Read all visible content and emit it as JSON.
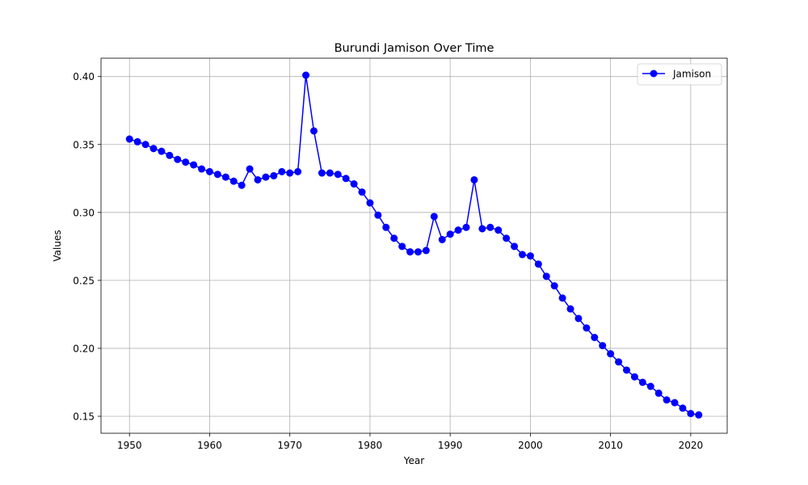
{
  "chart_data": {
    "type": "line",
    "title": "Burundi Jamison Over Time",
    "xlabel": "Year",
    "ylabel": "Values",
    "xlim": [
      1946.45,
      2024.55
    ],
    "ylim": [
      0.1375,
      0.4135
    ],
    "x_ticks": [
      1950,
      1960,
      1970,
      1980,
      1990,
      2000,
      2010,
      2020
    ],
    "y_ticks": [
      0.15,
      0.2,
      0.25,
      0.3,
      0.35,
      0.4
    ],
    "y_tick_labels": [
      "0.15",
      "0.20",
      "0.25",
      "0.30",
      "0.35",
      "0.40"
    ],
    "grid": true,
    "legend_position": "top-right",
    "series": [
      {
        "name": "Jamison",
        "color": "#0000ff",
        "marker": "circle",
        "x": [
          1950,
          1951,
          1952,
          1953,
          1954,
          1955,
          1956,
          1957,
          1958,
          1959,
          1960,
          1961,
          1962,
          1963,
          1964,
          1965,
          1966,
          1967,
          1968,
          1969,
          1970,
          1971,
          1972,
          1973,
          1974,
          1975,
          1976,
          1977,
          1978,
          1979,
          1980,
          1981,
          1982,
          1983,
          1984,
          1985,
          1986,
          1987,
          1988,
          1989,
          1990,
          1991,
          1992,
          1993,
          1994,
          1995,
          1996,
          1997,
          1998,
          1999,
          2000,
          2001,
          2002,
          2003,
          2004,
          2005,
          2006,
          2007,
          2008,
          2009,
          2010,
          2011,
          2012,
          2013,
          2014,
          2015,
          2016,
          2017,
          2018,
          2019,
          2020,
          2021
        ],
        "values": [
          0.354,
          0.352,
          0.35,
          0.347,
          0.345,
          0.342,
          0.339,
          0.337,
          0.335,
          0.332,
          0.33,
          0.328,
          0.326,
          0.323,
          0.32,
          0.332,
          0.324,
          0.326,
          0.327,
          0.33,
          0.329,
          0.33,
          0.401,
          0.36,
          0.329,
          0.329,
          0.328,
          0.325,
          0.321,
          0.315,
          0.307,
          0.298,
          0.289,
          0.281,
          0.275,
          0.271,
          0.271,
          0.272,
          0.297,
          0.28,
          0.284,
          0.287,
          0.289,
          0.324,
          0.288,
          0.289,
          0.287,
          0.281,
          0.275,
          0.269,
          0.268,
          0.262,
          0.253,
          0.246,
          0.237,
          0.229,
          0.222,
          0.215,
          0.208,
          0.202,
          0.196,
          0.19,
          0.184,
          0.179,
          0.175,
          0.172,
          0.167,
          0.162,
          0.16,
          0.156,
          0.152,
          0.151
        ]
      }
    ]
  }
}
